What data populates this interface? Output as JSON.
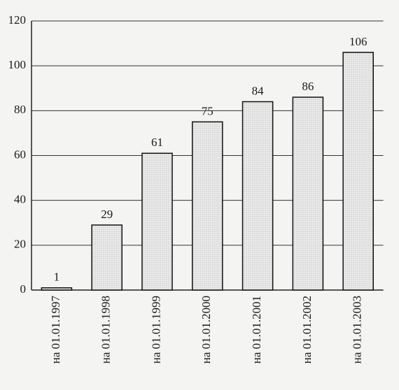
{
  "chart_data": {
    "type": "bar",
    "categories": [
      "на 01.01.1997",
      "на 01.01.1998",
      "на 01.01.1999",
      "на 01.01.2000",
      "на 01.01.2001",
      "на 01.01.2002",
      "на 01.01.2003"
    ],
    "values": [
      1,
      29,
      61,
      75,
      84,
      86,
      106
    ],
    "color": "#e4e4e4",
    "ylim": [
      0,
      120
    ],
    "yticks": [
      0,
      20,
      40,
      60,
      80,
      100,
      120
    ],
    "grid": true
  }
}
